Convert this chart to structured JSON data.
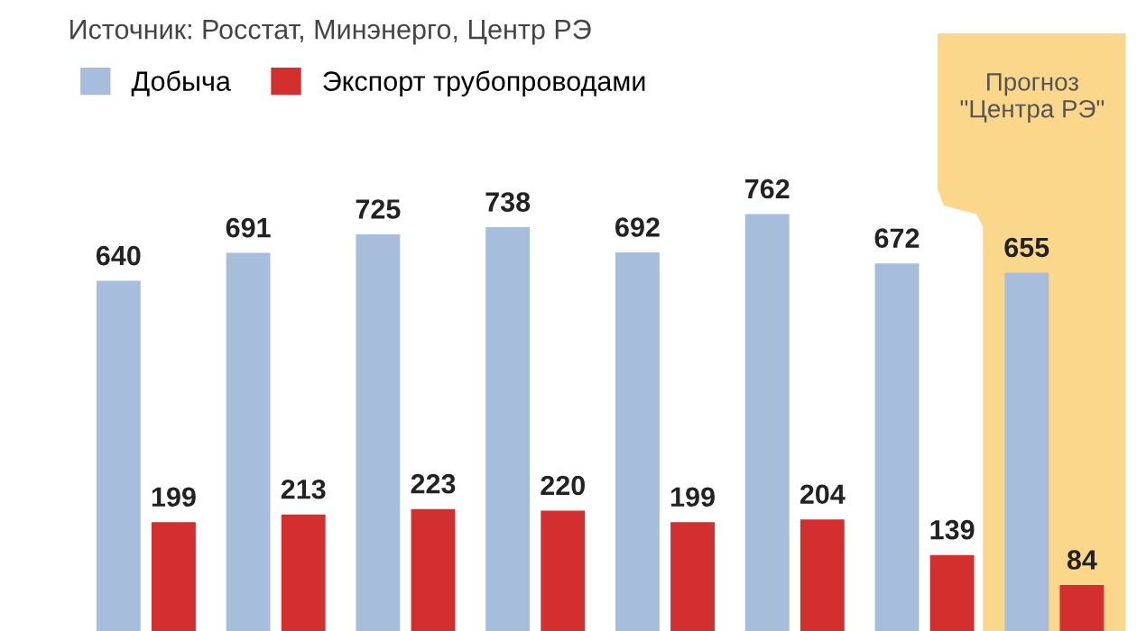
{
  "chart_data": {
    "type": "bar",
    "categories": [
      null,
      null,
      null,
      null,
      null,
      null,
      null,
      null
    ],
    "series": [
      {
        "name": "Добыча",
        "color": "#a6bedb",
        "values": [
          640,
          691,
          725,
          738,
          692,
          762,
          672,
          655
        ]
      },
      {
        "name": "Экспорт трубопроводами",
        "color": "#d42f2f",
        "values": [
          199,
          213,
          223,
          220,
          199,
          204,
          139,
          84
        ]
      }
    ],
    "data_labels": true,
    "legend": "top left",
    "grid": false,
    "annotations": [
      "Источник: Росстат, Минэнерго, Центр РЭ",
      "Прогноз\n\"Центра РЭ\""
    ]
  }
}
